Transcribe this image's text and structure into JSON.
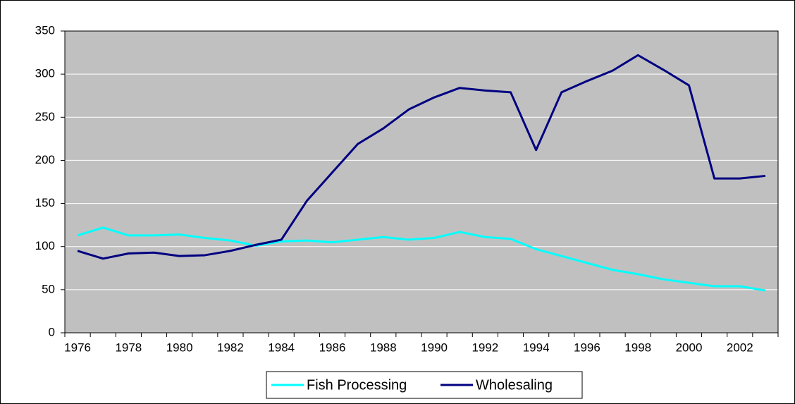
{
  "chart_data": {
    "type": "line",
    "categories": [
      "1976",
      null,
      "1978",
      null,
      "1980",
      null,
      "1982",
      null,
      "1984",
      null,
      "1986",
      null,
      "1988",
      null,
      "1990",
      null,
      "1992",
      null,
      "1994",
      null,
      "1996",
      null,
      "1998",
      null,
      "2000",
      null,
      "2002",
      null
    ],
    "series": [
      {
        "name": "Fish Processing",
        "color": "#00ffff",
        "values": [
          113,
          122,
          113,
          113,
          114,
          110,
          107,
          101,
          106,
          107,
          105,
          108,
          111,
          108,
          110,
          117,
          111,
          109,
          97,
          89,
          81,
          73,
          68,
          62,
          58,
          54,
          54,
          49
        ]
      },
      {
        "name": "Wholesaling",
        "color": "#000080",
        "values": [
          95,
          86,
          92,
          93,
          89,
          90,
          95,
          102,
          108,
          153,
          186,
          219,
          237,
          259,
          273,
          284,
          281,
          279,
          212,
          279,
          292,
          304,
          322,
          305,
          287,
          179,
          179,
          182
        ]
      }
    ],
    "ylim": [
      0,
      350
    ],
    "yticks": [
      0,
      50,
      100,
      150,
      200,
      250,
      300,
      350
    ],
    "grid": true,
    "legend": "bottom"
  }
}
